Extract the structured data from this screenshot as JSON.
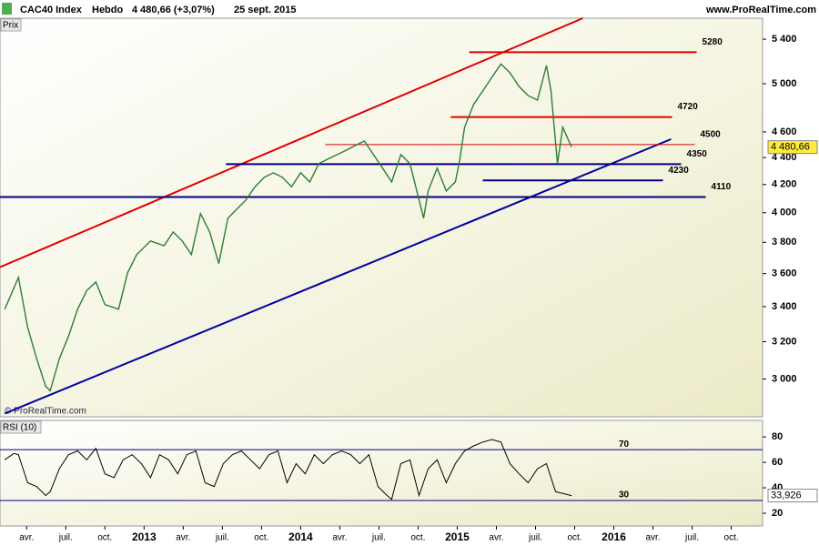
{
  "chart_data": [
    {
      "type": "line",
      "title": "CAC40 Index",
      "period": "Hebdo",
      "last": "4 480,66 (+3,07%)",
      "date": "25 sept. 2015",
      "source": "www.ProRealTime.com",
      "panel_label": "Prix",
      "copyright": "© ProRealTime.com",
      "log_scale": true,
      "xlim": [
        2012.08,
        2016.95
      ],
      "ylim": [
        2810,
        5600
      ],
      "yticks": [
        {
          "value": 3000,
          "label": "3 000"
        },
        {
          "value": 3200,
          "label": "3 200"
        },
        {
          "value": 3400,
          "label": "3 400"
        },
        {
          "value": 3600,
          "label": "3 600"
        },
        {
          "value": 3800,
          "label": "3 800"
        },
        {
          "value": 4000,
          "label": "4 000"
        },
        {
          "value": 4200,
          "label": "4 200"
        },
        {
          "value": 4400,
          "label": "4 400"
        },
        {
          "value": 4600,
          "label": "4 600"
        },
        {
          "value": 5000,
          "label": "5 000"
        },
        {
          "value": 5400,
          "label": "5 400"
        }
      ],
      "series": [
        {
          "color": "#2e7d32",
          "x": [
            2012.11,
            2012.198,
            2012.256,
            2012.314,
            2012.372,
            2012.401,
            2012.459,
            2012.517,
            2012.576,
            2012.634,
            2012.692,
            2012.75,
            2012.837,
            2012.895,
            2012.953,
            2013.041,
            2013.128,
            2013.186,
            2013.244,
            2013.302,
            2013.36,
            2013.419,
            2013.477,
            2013.535,
            2013.593,
            2013.651,
            2013.709,
            2013.767,
            2013.826,
            2013.884,
            2013.942,
            2014.0,
            2014.058,
            2014.116,
            2014.174,
            2014.233,
            2014.291,
            2014.349,
            2014.407,
            2014.465,
            2014.523,
            2014.581,
            2014.64,
            2014.698,
            2014.756,
            2014.785,
            2014.814,
            2014.872,
            2014.93,
            2014.988,
            2015.017,
            2015.047,
            2015.105,
            2015.163,
            2015.221,
            2015.279,
            2015.337,
            2015.395,
            2015.453,
            2015.512,
            2015.57,
            2015.599,
            2015.64,
            2015.674,
            2015.73
          ],
          "values": [
            3385,
            3576,
            3282,
            3107,
            2962,
            2940,
            3107,
            3229,
            3385,
            3495,
            3548,
            3412,
            3385,
            3605,
            3720,
            3809,
            3778,
            3869,
            3809,
            3720,
            3994,
            3869,
            3663,
            3962,
            4025,
            4089,
            4184,
            4252,
            4286,
            4252,
            4184,
            4286,
            4219,
            4354,
            4389,
            4423,
            4456,
            4493,
            4528,
            4423,
            4320,
            4219,
            4423,
            4354,
            4089,
            3962,
            4153,
            4320,
            4153,
            4219,
            4389,
            4637,
            4824,
            4937,
            5055,
            5174,
            5095,
            4976,
            4898,
            4860,
            5160,
            4937,
            4354,
            4637,
            4480.66
          ]
        }
      ],
      "levels": [
        {
          "value": 5280,
          "color": "#e00000",
          "width": 2,
          "from": 2015.076,
          "to": 2016.529
        },
        {
          "value": 4720,
          "color": "#e00000",
          "width": 2,
          "from": 2014.959,
          "to": 2016.372
        },
        {
          "value": 4500,
          "color": "#e00000",
          "width": 1,
          "from": 2014.157,
          "to": 2016.517
        },
        {
          "value": 4350,
          "color": "#000080",
          "width": 2,
          "from": 2013.523,
          "to": 2016.43
        },
        {
          "value": 4230,
          "color": "#000080",
          "width": 2,
          "from": 2015.163,
          "to": 2016.314
        },
        {
          "value": 4110,
          "color": "#000080",
          "width": 2,
          "from": 2012.08,
          "to": 2016.587
        }
      ],
      "trendlines": [
        {
          "color": "#e00000",
          "x": [
            2012.08,
            2015.802
          ],
          "values": [
            3640,
            5600
          ]
        },
        {
          "color": "#0000a0",
          "x": [
            2012.11,
            2016.366
          ],
          "values": [
            2826,
            4543
          ]
        }
      ],
      "last_price": {
        "value": 4480.66,
        "label": "4 480,66"
      }
    },
    {
      "type": "line",
      "title": "RSI (10)",
      "xlim": [
        2012.08,
        2016.95
      ],
      "ylim": [
        10,
        93
      ],
      "yticks": [
        20,
        40,
        60,
        80
      ],
      "xticks": [
        {
          "value": 2012.25,
          "label": "avr."
        },
        {
          "value": 2012.5,
          "label": "juil."
        },
        {
          "value": 2012.75,
          "label": "oct."
        },
        2013,
        {
          "value": 2013.25,
          "label": "avr."
        },
        {
          "value": 2013.5,
          "label": "juil."
        },
        {
          "value": 2013.75,
          "label": "oct."
        },
        2014,
        {
          "value": 2014.25,
          "label": "avr."
        },
        {
          "value": 2014.5,
          "label": "juil."
        },
        {
          "value": 2014.75,
          "label": "oct."
        },
        2015,
        {
          "value": 2015.25,
          "label": "avr."
        },
        {
          "value": 2015.5,
          "label": "juil."
        },
        {
          "value": 2015.75,
          "label": "oct."
        },
        2016,
        {
          "value": 2016.25,
          "label": "avr."
        },
        {
          "value": 2016.5,
          "label": "juil."
        },
        {
          "value": 2016.75,
          "label": "oct."
        }
      ],
      "levels": [
        {
          "value": 70,
          "color": "#000080"
        },
        {
          "value": 30,
          "color": "#000080"
        }
      ],
      "series": [
        {
          "color": "#000000",
          "x": [
            2012.11,
            2012.169,
            2012.198,
            2012.256,
            2012.314,
            2012.372,
            2012.401,
            2012.459,
            2012.517,
            2012.576,
            2012.634,
            2012.692,
            2012.75,
            2012.808,
            2012.866,
            2012.924,
            2012.983,
            2013.041,
            2013.099,
            2013.157,
            2013.215,
            2013.273,
            2013.331,
            2013.39,
            2013.448,
            2013.506,
            2013.564,
            2013.622,
            2013.68,
            2013.738,
            2013.797,
            2013.855,
            2013.913,
            2013.971,
            2014.029,
            2014.087,
            2014.145,
            2014.203,
            2014.262,
            2014.32,
            2014.378,
            2014.436,
            2014.494,
            2014.552,
            2014.581,
            2014.64,
            2014.698,
            2014.756,
            2014.814,
            2014.872,
            2014.93,
            2014.988,
            2015.047,
            2015.105,
            2015.163,
            2015.221,
            2015.279,
            2015.337,
            2015.395,
            2015.453,
            2015.512,
            2015.57,
            2015.628,
            2015.73
          ],
          "values": [
            62,
            67,
            66,
            44,
            41,
            34,
            37,
            55,
            66,
            69,
            62,
            71,
            51,
            48,
            62,
            66,
            59,
            48,
            66,
            62,
            51,
            66,
            69,
            44,
            41,
            59,
            66,
            69,
            62,
            55,
            66,
            69,
            44,
            59,
            51,
            66,
            59,
            66,
            69,
            66,
            59,
            66,
            41,
            34,
            31,
            59,
            62,
            34,
            55,
            62,
            44,
            59,
            69,
            73,
            76,
            78,
            76,
            59,
            51,
            44,
            55,
            59,
            37,
            33.926
          ]
        }
      ],
      "last_value": {
        "value": 33.926,
        "label": "33,926"
      }
    }
  ]
}
